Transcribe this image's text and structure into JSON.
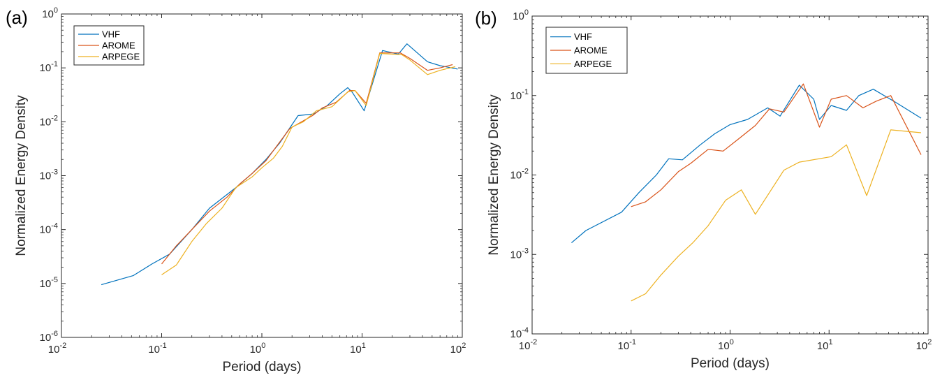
{
  "colors": {
    "VHF": "#0072BD",
    "AROME": "#D95319",
    "ARPEGE": "#EDB120",
    "axis": "#262626",
    "grid": "none"
  },
  "chart_data": [
    {
      "panel_label": "(a)",
      "type": "line",
      "xscale": "log",
      "yscale": "log",
      "xlim": [
        0.01,
        100
      ],
      "ylim": [
        1e-06,
        1
      ],
      "xlabel": "Period (days)",
      "ylabel": "Normalized Energy Density",
      "x_ticks": [
        {
          "b": "10",
          "e": "-2"
        },
        {
          "b": "10",
          "e": "-1"
        },
        {
          "b": "10",
          "e": "0"
        },
        {
          "b": "10",
          "e": "1"
        },
        {
          "b": "10",
          "e": "2"
        }
      ],
      "y_ticks": [
        {
          "b": "10",
          "e": "-6"
        },
        {
          "b": "10",
          "e": "-5"
        },
        {
          "b": "10",
          "e": "-4"
        },
        {
          "b": "10",
          "e": "-3"
        },
        {
          "b": "10",
          "e": "-2"
        },
        {
          "b": "10",
          "e": "-1"
        },
        {
          "b": "10",
          "e": "0"
        }
      ],
      "grid": false,
      "legend": "top-left",
      "series": [
        {
          "name": "VHF",
          "x": [
            0.025,
            0.052,
            0.08,
            0.12,
            0.2,
            0.3,
            0.55,
            0.8,
            1.1,
            1.5,
            2.3,
            3.3,
            4.5,
            6.0,
            7.2,
            8.0,
            10.5,
            16,
            23,
            28,
            45,
            60,
            90
          ],
          "y": [
            9.5e-06,
            1.4e-05,
            2.3e-05,
            3.5e-05,
            0.0001,
            0.00025,
            0.0006,
            0.0011,
            0.002,
            0.004,
            0.013,
            0.014,
            0.02,
            0.033,
            0.043,
            0.035,
            0.016,
            0.21,
            0.18,
            0.28,
            0.13,
            0.11,
            0.095
          ]
        },
        {
          "name": "AROME",
          "x": [
            0.1,
            0.14,
            0.2,
            0.3,
            0.45,
            0.6,
            0.8,
            1.1,
            1.4,
            1.9,
            2.5,
            3.2,
            4.0,
            5.5,
            7.5,
            8.5,
            11,
            15,
            19,
            24,
            30,
            45,
            60,
            80
          ],
          "y": [
            2.3e-05,
            5e-05,
            0.0001,
            0.00022,
            0.0004,
            0.0007,
            0.0011,
            0.0019,
            0.0035,
            0.0075,
            0.01,
            0.013,
            0.018,
            0.023,
            0.038,
            0.038,
            0.022,
            0.19,
            0.19,
            0.19,
            0.15,
            0.09,
            0.1,
            0.115
          ]
        },
        {
          "name": "ARPEGE",
          "x": [
            0.1,
            0.14,
            0.2,
            0.28,
            0.4,
            0.55,
            0.8,
            1.0,
            1.3,
            1.6,
            2.0,
            2.6,
            3.5,
            5.0,
            6.0,
            7.2,
            8.5,
            11,
            15,
            20,
            25,
            30,
            45,
            60,
            85
          ],
          "y": [
            1.45e-05,
            2.2e-05,
            6e-05,
            0.00013,
            0.00025,
            0.0006,
            0.00095,
            0.0014,
            0.0021,
            0.0035,
            0.008,
            0.01,
            0.016,
            0.019,
            0.026,
            0.036,
            0.038,
            0.02,
            0.185,
            0.18,
            0.175,
            0.14,
            0.075,
            0.09,
            0.105
          ]
        }
      ]
    },
    {
      "panel_label": "(b)",
      "type": "line",
      "xscale": "log",
      "yscale": "log",
      "xlim": [
        0.01,
        100
      ],
      "ylim": [
        0.0001,
        1
      ],
      "xlabel": "Period (days)",
      "ylabel": "Normalized Energy Density",
      "x_ticks": [
        {
          "b": "10",
          "e": "-2"
        },
        {
          "b": "10",
          "e": "-1"
        },
        {
          "b": "10",
          "e": "0"
        },
        {
          "b": "10",
          "e": "1"
        },
        {
          "b": "10",
          "e": "2"
        }
      ],
      "y_ticks": [
        {
          "b": "10",
          "e": "-4"
        },
        {
          "b": "10",
          "e": "-3"
        },
        {
          "b": "10",
          "e": "-2"
        },
        {
          "b": "10",
          "e": "-1"
        },
        {
          "b": "10",
          "e": "0"
        }
      ],
      "grid": false,
      "legend": "top-left",
      "series": [
        {
          "name": "VHF",
          "x": [
            0.025,
            0.035,
            0.08,
            0.12,
            0.18,
            0.24,
            0.33,
            0.5,
            0.7,
            1.0,
            1.5,
            2.4,
            3.2,
            5.0,
            7.0,
            8.0,
            10.5,
            15,
            20,
            28,
            45,
            85
          ],
          "y": [
            0.0014,
            0.002,
            0.0034,
            0.006,
            0.01,
            0.016,
            0.0155,
            0.024,
            0.033,
            0.043,
            0.05,
            0.07,
            0.055,
            0.135,
            0.09,
            0.05,
            0.075,
            0.065,
            0.1,
            0.12,
            0.085,
            0.052
          ]
        },
        {
          "name": "AROME",
          "x": [
            0.1,
            0.14,
            0.2,
            0.3,
            0.4,
            0.6,
            0.85,
            1.2,
            1.8,
            2.5,
            3.5,
            5.5,
            8.0,
            10.5,
            15,
            22,
            30,
            42,
            85
          ],
          "y": [
            0.004,
            0.0046,
            0.0065,
            0.011,
            0.014,
            0.021,
            0.02,
            0.028,
            0.042,
            0.068,
            0.062,
            0.14,
            0.04,
            0.09,
            0.1,
            0.07,
            0.085,
            0.1,
            0.018
          ]
        },
        {
          "name": "ARPEGE",
          "x": [
            0.1,
            0.14,
            0.2,
            0.3,
            0.42,
            0.6,
            0.9,
            1.3,
            1.8,
            3.5,
            5.0,
            10.5,
            15,
            24,
            42,
            85
          ],
          "y": [
            0.00026,
            0.00032,
            0.00055,
            0.00095,
            0.0014,
            0.0023,
            0.0048,
            0.0065,
            0.0032,
            0.0115,
            0.0145,
            0.017,
            0.024,
            0.0055,
            0.037,
            0.034
          ]
        }
      ]
    }
  ]
}
